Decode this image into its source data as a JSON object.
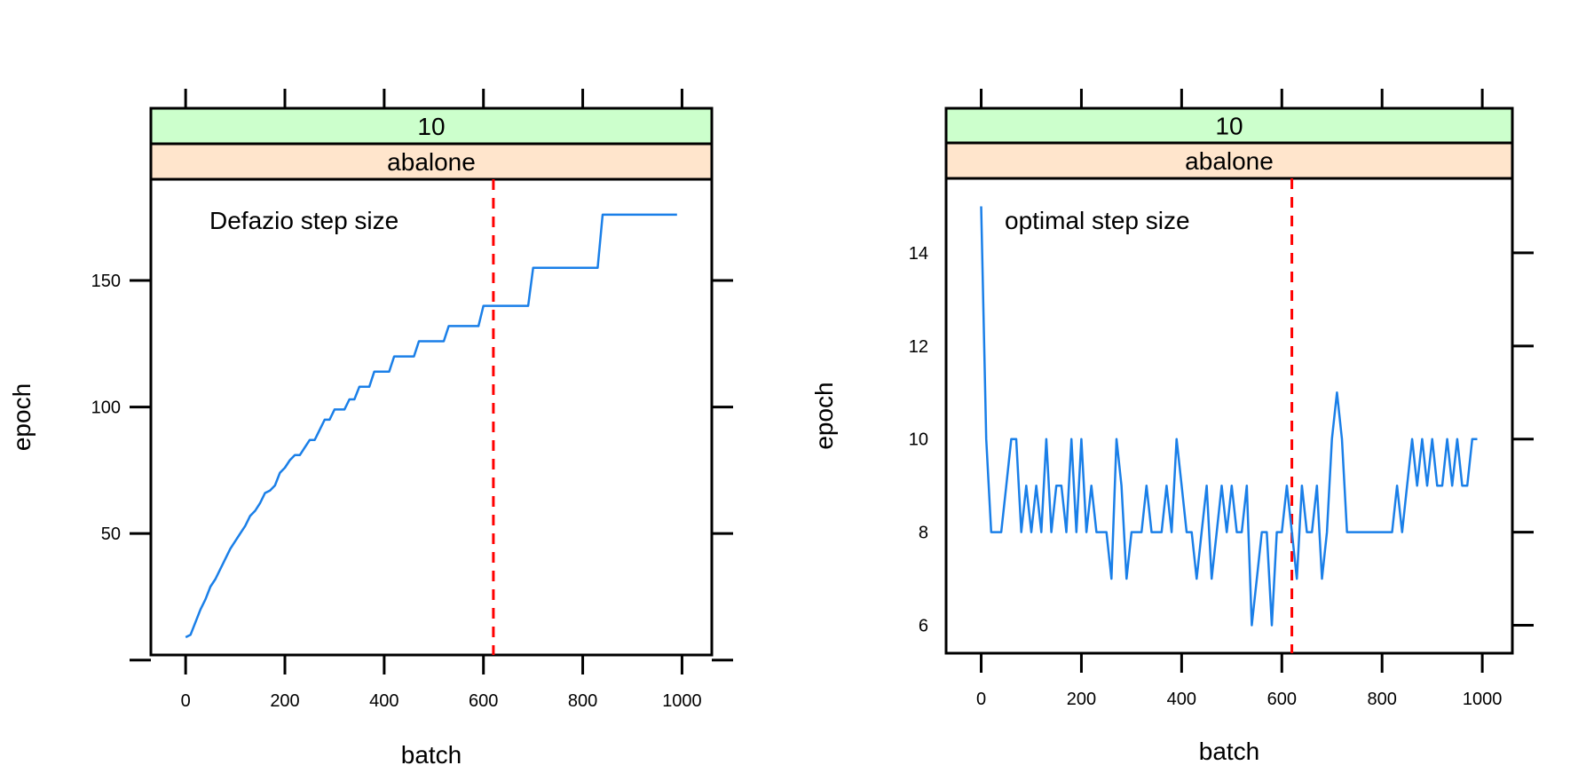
{
  "chart_data": [
    {
      "type": "line",
      "strips": [
        "10",
        "abalone"
      ],
      "strip_colors": [
        "#ccffcc",
        "#ffe5cc"
      ],
      "annotation": "Defazio step size",
      "xlabel": "batch",
      "ylabel": "epoch",
      "xlim": [
        -70,
        1060
      ],
      "ylim": [
        2,
        190
      ],
      "xticks": [
        0,
        200,
        400,
        600,
        800,
        1000
      ],
      "xtick_labels": [
        "0",
        "200",
        "400",
        "600",
        "800",
        "1000"
      ],
      "yticks": [
        0,
        50,
        100,
        150
      ],
      "ytick_labels": [
        "",
        "50",
        "100",
        "150"
      ],
      "vline": 620,
      "vline_color": "#ff0000",
      "line_color": "#1a7fe8",
      "series": [
        {
          "x": [
            0,
            10,
            20,
            30,
            40,
            50,
            60,
            70,
            80,
            90,
            100,
            110,
            120,
            130,
            140,
            150,
            160,
            170,
            180,
            190,
            200,
            210,
            220,
            230,
            240,
            250,
            260,
            270,
            280,
            290,
            300,
            310,
            320,
            330,
            340,
            350,
            360,
            370,
            380,
            390,
            400,
            410,
            420,
            430,
            440,
            450,
            460,
            470,
            480,
            490,
            500,
            510,
            520,
            530,
            540,
            550,
            560,
            570,
            580,
            590,
            600,
            610,
            620,
            630,
            640,
            650,
            660,
            670,
            680,
            690,
            700,
            710,
            720,
            730,
            740,
            750,
            760,
            770,
            780,
            790,
            800,
            810,
            820,
            830,
            840,
            850,
            860,
            870,
            880,
            890,
            900,
            910,
            920,
            930,
            940,
            950,
            960,
            970,
            980,
            990
          ],
          "y": [
            9,
            10,
            15,
            20,
            24,
            29,
            32,
            36,
            40,
            44,
            47,
            50,
            53,
            57,
            59,
            62,
            66,
            67,
            69,
            74,
            76,
            79,
            81,
            81,
            84,
            87,
            87,
            91,
            95,
            95,
            99,
            99,
            99,
            103,
            103,
            108,
            108,
            108,
            114,
            114,
            114,
            114,
            120,
            120,
            120,
            120,
            120,
            126,
            126,
            126,
            126,
            126,
            126,
            132,
            132,
            132,
            132,
            132,
            132,
            132,
            140,
            140,
            140,
            140,
            140,
            140,
            140,
            140,
            140,
            140,
            155,
            155,
            155,
            155,
            155,
            155,
            155,
            155,
            155,
            155,
            155,
            155,
            155,
            155,
            176,
            176,
            176,
            176,
            176,
            176,
            176,
            176,
            176,
            176,
            176,
            176,
            176,
            176,
            176,
            176
          ]
        }
      ]
    },
    {
      "type": "line",
      "strips": [
        "10",
        "abalone"
      ],
      "strip_colors": [
        "#ccffcc",
        "#ffe5cc"
      ],
      "annotation": "optimal step size",
      "xlabel": "batch",
      "ylabel": "epoch",
      "xlim": [
        -70,
        1060
      ],
      "ylim": [
        5.4,
        15.6
      ],
      "xticks": [
        0,
        200,
        400,
        600,
        800,
        1000
      ],
      "xtick_labels": [
        "0",
        "200",
        "400",
        "600",
        "800",
        "1000"
      ],
      "yticks": [
        6,
        8,
        10,
        12,
        14
      ],
      "ytick_labels": [
        "6",
        "8",
        "10",
        "12",
        "14"
      ],
      "vline": 620,
      "vline_color": "#ff0000",
      "line_color": "#1a7fe8",
      "series": [
        {
          "x": [
            0,
            10,
            20,
            30,
            40,
            50,
            60,
            70,
            80,
            90,
            100,
            110,
            120,
            130,
            140,
            150,
            160,
            170,
            180,
            190,
            200,
            210,
            220,
            230,
            240,
            250,
            260,
            270,
            280,
            290,
            300,
            310,
            320,
            330,
            340,
            350,
            360,
            370,
            380,
            390,
            400,
            410,
            420,
            430,
            440,
            450,
            460,
            470,
            480,
            490,
            500,
            510,
            520,
            530,
            540,
            550,
            560,
            570,
            580,
            590,
            600,
            610,
            620,
            630,
            640,
            650,
            660,
            670,
            680,
            690,
            700,
            710,
            720,
            730,
            740,
            750,
            760,
            770,
            780,
            790,
            800,
            810,
            820,
            830,
            840,
            850,
            860,
            870,
            880,
            890,
            900,
            910,
            920,
            930,
            940,
            950,
            960,
            970,
            980,
            990
          ],
          "y": [
            15,
            10,
            8,
            8,
            8,
            9,
            10,
            10,
            8,
            9,
            8,
            9,
            8,
            10,
            8,
            9,
            9,
            8,
            10,
            8,
            10,
            8,
            9,
            8,
            8,
            8,
            7,
            10,
            9,
            7,
            8,
            8,
            8,
            9,
            8,
            8,
            8,
            9,
            8,
            10,
            9,
            8,
            8,
            7,
            8,
            9,
            7,
            8,
            9,
            8,
            9,
            8,
            8,
            9,
            6,
            7,
            8,
            8,
            6,
            8,
            8,
            9,
            8,
            7,
            9,
            8,
            8,
            9,
            7,
            8,
            10,
            11,
            10,
            8,
            8,
            8,
            8,
            8,
            8,
            8,
            8,
            8,
            8,
            9,
            8,
            9,
            10,
            9,
            10,
            9,
            10,
            9,
            9,
            10,
            9,
            10,
            9,
            9,
            10,
            10
          ]
        }
      ]
    }
  ]
}
